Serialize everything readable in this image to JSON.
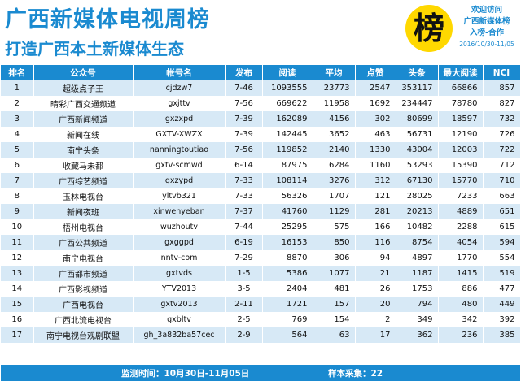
{
  "header": {
    "title": "广西新媒体电视周榜",
    "subtitle": "打造广西本土新媒体生态",
    "logo_char": "榜",
    "promo_lines": [
      "欢迎访问",
      "广西新媒体榜",
      "入榜-合作"
    ],
    "date_range": "2016/10/30-11/05"
  },
  "columns": [
    "排名",
    "公众号",
    "帐号名",
    "发布",
    "阅读",
    "平均",
    "点赞",
    "头条",
    "最大阅读",
    "NCI"
  ],
  "rows": [
    [
      "1",
      "超级点子王",
      "cjdzw7",
      "7-46",
      "1093555",
      "23773",
      "2547",
      "353117",
      "66866",
      "857"
    ],
    [
      "2",
      "晴彩广西交通频道",
      "gxjttv",
      "7-56",
      "669622",
      "11958",
      "1692",
      "234447",
      "78780",
      "827"
    ],
    [
      "3",
      "广西新闻频道",
      "gxzxpd",
      "7-39",
      "162089",
      "4156",
      "302",
      "80699",
      "18597",
      "732"
    ],
    [
      "4",
      "新闻在线",
      "GXTV-XWZX",
      "7-39",
      "142445",
      "3652",
      "463",
      "56731",
      "12190",
      "726"
    ],
    [
      "5",
      "南宁头条",
      "nanningtoutiao",
      "7-56",
      "119852",
      "2140",
      "1330",
      "43004",
      "12003",
      "722"
    ],
    [
      "6",
      "收藏马未都",
      "gxtv-scmwd",
      "6-14",
      "87975",
      "6284",
      "1160",
      "53293",
      "15390",
      "712"
    ],
    [
      "7",
      "广西综艺频道",
      "gxzypd",
      "7-33",
      "108114",
      "3276",
      "312",
      "67130",
      "15770",
      "710"
    ],
    [
      "8",
      "玉林电视台",
      "yltvb321",
      "7-33",
      "56326",
      "1707",
      "121",
      "28025",
      "7233",
      "663"
    ],
    [
      "9",
      "新闻夜班",
      "xinwenyeban",
      "7-37",
      "41760",
      "1129",
      "281",
      "20213",
      "4889",
      "651"
    ],
    [
      "10",
      "梧州电视台",
      "wuzhoutv",
      "7-44",
      "25295",
      "575",
      "166",
      "10482",
      "2288",
      "615"
    ],
    [
      "11",
      "广西公共频道",
      "gxggpd",
      "6-19",
      "16153",
      "850",
      "116",
      "8754",
      "4054",
      "594"
    ],
    [
      "12",
      "南宁电视台",
      "nntv-com",
      "7-29",
      "8870",
      "306",
      "94",
      "4897",
      "1770",
      "554"
    ],
    [
      "13",
      "广西都市频道",
      "gxtvds",
      "1-5",
      "5386",
      "1077",
      "21",
      "1187",
      "1415",
      "519"
    ],
    [
      "14",
      "广西影视频道",
      "YTV2013",
      "3-5",
      "2404",
      "481",
      "26",
      "1753",
      "886",
      "477"
    ],
    [
      "15",
      "广西电视台",
      "gxtv2013",
      "2-11",
      "1721",
      "157",
      "20",
      "794",
      "480",
      "449"
    ],
    [
      "16",
      "广西北流电视台",
      "gxbltv",
      "2-5",
      "769",
      "154",
      "2",
      "349",
      "342",
      "392"
    ],
    [
      "17",
      "南宁电视台观剧联盟",
      "gh_3a832ba57cec",
      "2-9",
      "564",
      "63",
      "17",
      "362",
      "236",
      "385"
    ]
  ],
  "footer": {
    "period": "监测时间：10月30日-11月05日",
    "sample": "样本采集：22"
  },
  "colors": {
    "brand_blue": "#1a8ad0",
    "row_stripe": "#d7e9f6",
    "logo_yellow": "#ffd800"
  }
}
